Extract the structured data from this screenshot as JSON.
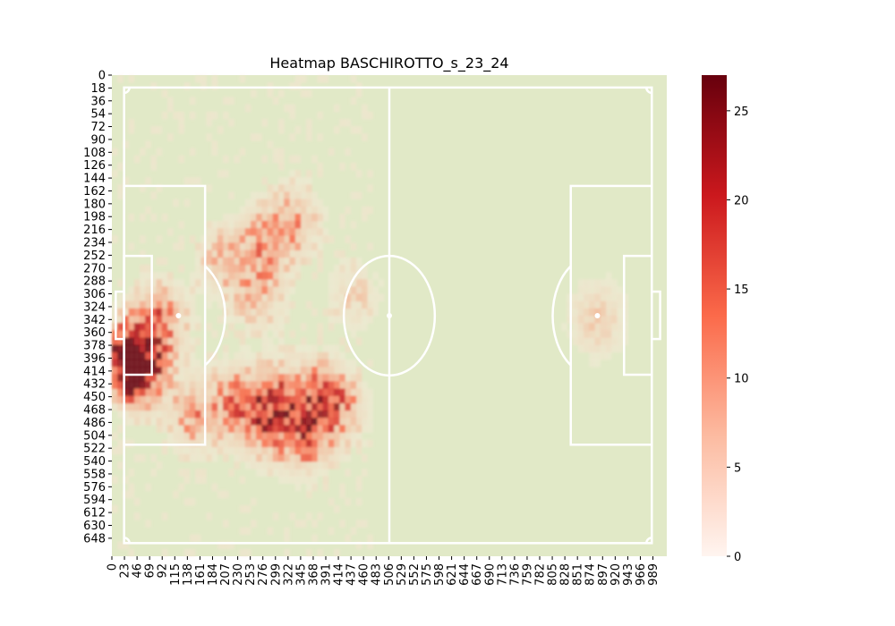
{
  "chart_data": {
    "type": "heatmap",
    "title": "Heatmap BASCHIROTTO_s_23_24",
    "xlabel": "",
    "ylabel": "",
    "x_tick_labels": [
      "0",
      "23",
      "46",
      "69",
      "92",
      "115",
      "138",
      "161",
      "184",
      "207",
      "230",
      "253",
      "276",
      "299",
      "322",
      "345",
      "368",
      "391",
      "414",
      "437",
      "460",
      "483",
      "506",
      "529",
      "552",
      "575",
      "598",
      "621",
      "644",
      "667",
      "690",
      "713",
      "736",
      "759",
      "782",
      "805",
      "828",
      "851",
      "874",
      "897",
      "920",
      "943",
      "966",
      "989"
    ],
    "y_tick_labels": [
      "0",
      "18",
      "36",
      "54",
      "72",
      "90",
      "108",
      "126",
      "144",
      "162",
      "180",
      "198",
      "216",
      "234",
      "252",
      "270",
      "288",
      "306",
      "324",
      "342",
      "360",
      "378",
      "396",
      "414",
      "432",
      "450",
      "468",
      "486",
      "504",
      "522",
      "540",
      "558",
      "576",
      "594",
      "612",
      "630",
      "648"
    ],
    "xlim": [
      0,
      1000
    ],
    "ylim": [
      0,
      660
    ],
    "colorbar": {
      "range": [
        0,
        27
      ],
      "ticks": [
        0,
        5,
        10,
        15,
        20,
        25
      ],
      "colors": [
        "#fff5f0",
        "#fcbba1",
        "#fb6a4a",
        "#cb181d",
        "#67000d"
      ]
    },
    "pitch_color": "#e1e9c7",
    "line_color": "#ffffff",
    "hotspots": [
      {
        "x": 40,
        "y": 395,
        "value": 26
      },
      {
        "x": 28,
        "y": 380,
        "value": 15
      },
      {
        "x": 80,
        "y": 330,
        "value": 12
      },
      {
        "x": 145,
        "y": 460,
        "value": 10
      },
      {
        "x": 265,
        "y": 470,
        "value": 12
      },
      {
        "x": 300,
        "y": 440,
        "value": 11
      },
      {
        "x": 340,
        "y": 490,
        "value": 13
      },
      {
        "x": 360,
        "y": 435,
        "value": 9
      },
      {
        "x": 400,
        "y": 450,
        "value": 11
      },
      {
        "x": 220,
        "y": 440,
        "value": 9
      },
      {
        "x": 270,
        "y": 230,
        "value": 9
      },
      {
        "x": 320,
        "y": 195,
        "value": 8
      },
      {
        "x": 200,
        "y": 250,
        "value": 7
      },
      {
        "x": 260,
        "y": 300,
        "value": 6
      },
      {
        "x": 870,
        "y": 330,
        "value": 6
      },
      {
        "x": 430,
        "y": 300,
        "value": 4
      }
    ]
  }
}
